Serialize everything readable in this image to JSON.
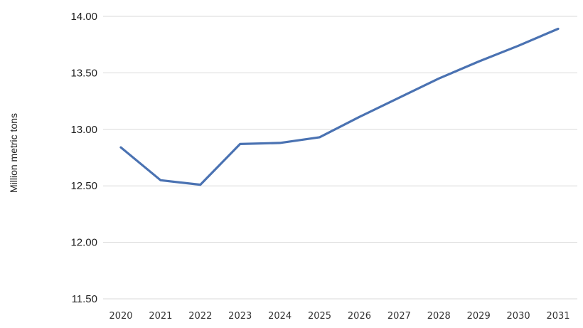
{
  "chart_data": {
    "type": "line",
    "title": "",
    "xlabel": "",
    "ylabel": "Million metric tons",
    "categories": [
      "2020",
      "2021",
      "2022",
      "2023",
      "2024",
      "2025",
      "2026",
      "2027",
      "2028",
      "2029",
      "2030",
      "2031"
    ],
    "series": [
      {
        "values": [
          12.84,
          12.55,
          12.51,
          12.87,
          12.88,
          12.93,
          13.11,
          13.28,
          13.45,
          13.6,
          13.74,
          13.89
        ],
        "color": "#4a72b2"
      }
    ],
    "ylim": [
      11.5,
      14.0
    ],
    "yticks": [
      "14.00",
      "13.50",
      "13.00",
      "12.50",
      "12.00",
      "11.50"
    ],
    "grid": true,
    "legend": "none"
  }
}
